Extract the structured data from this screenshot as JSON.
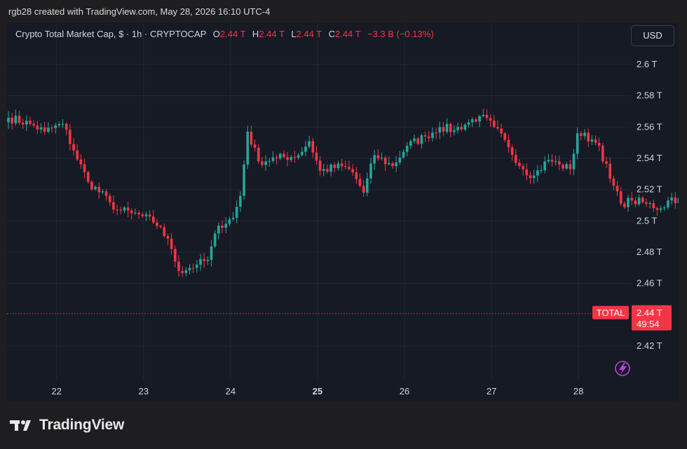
{
  "header": {
    "attribution": "rgb28 created with TradingView.com, May 28, 2026 16:10 UTC-4"
  },
  "legend": {
    "title": "Crypto Total Market Cap, $ · 1h · CRYPTOCAP",
    "o_label": "O",
    "o_value": "2.44 T",
    "h_label": "H",
    "h_value": "2.44 T",
    "l_label": "L",
    "l_value": "2.44 T",
    "c_label": "C",
    "c_value": "2.44 T",
    "change": "−3.3 B (−0.13%)"
  },
  "currency_button": "USD",
  "price_tag": {
    "symbol": "TOTAL",
    "price": "2.44 T",
    "countdown": "49:54"
  },
  "brand": {
    "name": "TradingView"
  },
  "colors": {
    "up": "#26a69a",
    "down": "#f23645",
    "background": "#161a25",
    "grid": "#232734",
    "price_line": "#f23645",
    "lightning": "#c040e0"
  },
  "icons": {
    "lightning": "lightning-icon",
    "logo": "tradingview-logo-icon"
  },
  "chart_data": {
    "type": "candlestick",
    "title": "Crypto Total Market Cap, $ · 1h · CRYPTOCAP",
    "y_unit": "T",
    "ylim": [
      2.405,
      2.625
    ],
    "y_ticks": [
      "2.6 T",
      "2.58 T",
      "2.56 T",
      "2.54 T",
      "2.52 T",
      "2.5 T",
      "2.48 T",
      "2.46 T",
      "2.42 T"
    ],
    "y_tick_values": [
      2.6,
      2.58,
      2.56,
      2.54,
      2.52,
      2.5,
      2.48,
      2.46,
      2.42
    ],
    "x_ticks": [
      "22",
      "23",
      "24",
      "25",
      "26",
      "27",
      "28"
    ],
    "x_tick_bold": [
      "25"
    ],
    "x_start": "May 21 20:00",
    "x_end": "May 28 16:00",
    "bars_per_day": 24,
    "last_price": 2.4407,
    "grid": true,
    "anchors_close": [
      [
        0,
        2.566
      ],
      [
        6,
        2.562
      ],
      [
        10,
        2.557
      ],
      [
        15,
        2.562
      ],
      [
        18,
        2.545
      ],
      [
        22,
        2.525
      ],
      [
        28,
        2.512
      ],
      [
        30,
        2.507
      ],
      [
        34,
        2.505
      ],
      [
        37,
        2.503
      ],
      [
        40,
        2.499
      ],
      [
        42,
        2.496
      ],
      [
        45,
        2.482
      ],
      [
        47,
        2.468
      ],
      [
        52,
        2.472
      ],
      [
        55,
        2.475
      ],
      [
        58,
        2.497
      ],
      [
        62,
        2.502
      ],
      [
        64,
        2.516
      ],
      [
        66,
        2.557
      ],
      [
        69,
        2.538
      ],
      [
        74,
        2.54
      ],
      [
        80,
        2.542
      ],
      [
        83,
        2.551
      ],
      [
        86,
        2.532
      ],
      [
        92,
        2.535
      ],
      [
        95,
        2.531
      ],
      [
        98,
        2.518
      ],
      [
        101,
        2.542
      ],
      [
        106,
        2.535
      ],
      [
        110,
        2.548
      ],
      [
        115,
        2.554
      ],
      [
        119,
        2.56
      ],
      [
        123,
        2.558
      ],
      [
        127,
        2.563
      ],
      [
        130,
        2.567
      ],
      [
        134,
        2.56
      ],
      [
        138,
        2.547
      ],
      [
        142,
        2.533
      ],
      [
        145,
        2.529
      ],
      [
        149,
        2.539
      ],
      [
        152,
        2.536
      ],
      [
        155,
        2.533
      ],
      [
        157,
        2.556
      ],
      [
        161,
        2.552
      ],
      [
        163,
        2.548
      ],
      [
        166,
        2.527
      ],
      [
        169,
        2.511
      ],
      [
        172,
        2.513
      ],
      [
        176,
        2.511
      ],
      [
        180,
        2.508
      ],
      [
        183,
        2.515
      ],
      [
        186,
        2.512
      ],
      [
        189,
        2.517
      ],
      [
        192,
        2.506
      ],
      [
        195,
        2.499
      ],
      [
        198,
        2.502
      ],
      [
        200,
        2.488
      ],
      [
        203,
        2.496
      ],
      [
        205,
        2.484
      ],
      [
        207,
        2.472
      ],
      [
        211,
        2.468
      ],
      [
        214,
        2.452
      ],
      [
        216,
        2.433
      ],
      [
        219,
        2.425
      ],
      [
        221,
        2.436
      ],
      [
        225,
        2.436
      ],
      [
        228,
        2.424
      ],
      [
        231,
        2.437
      ],
      [
        234,
        2.443
      ],
      [
        236,
        2.449
      ],
      [
        237,
        2.4407
      ]
    ]
  }
}
